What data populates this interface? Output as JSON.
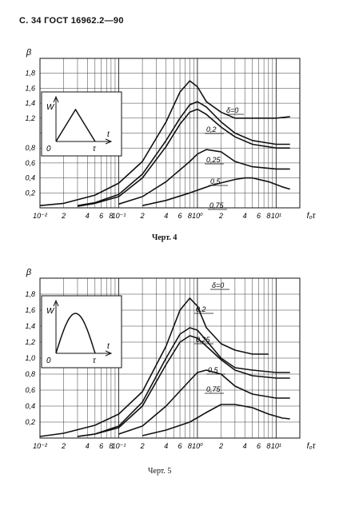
{
  "header": {
    "text": "С. 34  ГОСТ 16962.2—90"
  },
  "figures": [
    {
      "caption": "Черт. 4",
      "y_axis_label": "β",
      "x_axis_label": "f₀τ",
      "y_ticks": [
        "0,2",
        "0,4",
        "0,6",
        "0,8",
        "1,2",
        "1,4",
        "1,6",
        "1,8"
      ],
      "x_ticks": [
        "10⁻²",
        "2",
        "4",
        "6",
        "8",
        "10⁻¹",
        "2",
        "4",
        "6",
        "8",
        "10⁰",
        "2",
        "4",
        "6",
        "8",
        "10¹"
      ],
      "inset": {
        "y_label": "W",
        "x_label": "t",
        "origin": "0",
        "end": "τ",
        "shape": "triangle"
      },
      "curve_labels": [
        "δ=0",
        "0,2",
        "0,25",
        "0,5",
        "0,75"
      ]
    },
    {
      "caption": "Черт. 5",
      "y_axis_label": "β",
      "x_axis_label": "f₀τ",
      "y_ticks": [
        "0,2",
        "0,4",
        "0,6",
        "0,8",
        "1,0",
        "1,2",
        "1,4",
        "1,6",
        "1,8"
      ],
      "x_ticks": [
        "10⁻²",
        "2",
        "4",
        "6",
        "8",
        "10⁻¹",
        "2",
        "4",
        "6",
        "8",
        "10⁰",
        "2",
        "4",
        "6",
        "8",
        "10¹"
      ],
      "inset": {
        "y_label": "W",
        "x_label": "t",
        "origin": "0",
        "end": "τ",
        "shape": "half-sine"
      },
      "curve_labels": [
        "δ=0",
        "0,2",
        "0,25",
        "0,5",
        "0,75"
      ]
    }
  ],
  "chart_data": [
    {
      "type": "line",
      "xscale": "log",
      "xlim": [
        0.01,
        20
      ],
      "ylim": [
        0,
        2.0
      ],
      "series": [
        {
          "name": "δ=0",
          "x": [
            0.01,
            0.02,
            0.05,
            0.1,
            0.2,
            0.4,
            0.6,
            0.8,
            1.0,
            1.3,
            2,
            3,
            5,
            10,
            15
          ],
          "y": [
            0.03,
            0.06,
            0.17,
            0.33,
            0.62,
            1.15,
            1.55,
            1.7,
            1.62,
            1.42,
            1.28,
            1.2,
            1.2,
            1.2,
            1.22
          ]
        },
        {
          "name": "0,2",
          "x": [
            0.03,
            0.05,
            0.1,
            0.2,
            0.4,
            0.6,
            0.8,
            1.0,
            1.3,
            2,
            3,
            5,
            10,
            15
          ],
          "y": [
            0.03,
            0.07,
            0.18,
            0.45,
            0.9,
            1.2,
            1.38,
            1.42,
            1.35,
            1.15,
            1.0,
            0.9,
            0.85,
            0.85
          ]
        },
        {
          "name": "0,25",
          "x": [
            0.03,
            0.05,
            0.1,
            0.2,
            0.4,
            0.6,
            0.8,
            1.0,
            1.3,
            2,
            3,
            5,
            10,
            15
          ],
          "y": [
            0.02,
            0.06,
            0.15,
            0.4,
            0.82,
            1.12,
            1.28,
            1.32,
            1.25,
            1.08,
            0.95,
            0.85,
            0.8,
            0.8
          ]
        },
        {
          "name": "0,5",
          "x": [
            0.1,
            0.2,
            0.4,
            0.8,
            1.0,
            1.3,
            2,
            3,
            5,
            10,
            15
          ],
          "y": [
            0.05,
            0.15,
            0.35,
            0.62,
            0.72,
            0.78,
            0.75,
            0.62,
            0.55,
            0.52,
            0.52
          ]
        },
        {
          "name": "0,75",
          "x": [
            0.2,
            0.4,
            0.8,
            1.5,
            3,
            4,
            5,
            8,
            12,
            15
          ],
          "y": [
            0.03,
            0.1,
            0.2,
            0.3,
            0.38,
            0.4,
            0.4,
            0.35,
            0.28,
            0.25
          ]
        }
      ]
    },
    {
      "type": "line",
      "xscale": "log",
      "xlim": [
        0.01,
        20
      ],
      "ylim": [
        0,
        2.0
      ],
      "series": [
        {
          "name": "δ=0",
          "x": [
            0.01,
            0.02,
            0.05,
            0.1,
            0.2,
            0.4,
            0.6,
            0.8,
            1.0,
            1.3,
            2,
            3,
            5,
            8
          ],
          "y": [
            0.02,
            0.06,
            0.16,
            0.3,
            0.58,
            1.15,
            1.6,
            1.75,
            1.65,
            1.38,
            1.18,
            1.1,
            1.05,
            1.05
          ]
        },
        {
          "name": "0,2",
          "x": [
            0.03,
            0.05,
            0.1,
            0.2,
            0.4,
            0.6,
            0.8,
            1.0,
            1.3,
            2,
            3,
            5,
            10,
            15
          ],
          "y": [
            0.02,
            0.05,
            0.15,
            0.45,
            1.0,
            1.3,
            1.38,
            1.35,
            1.22,
            1.0,
            0.88,
            0.85,
            0.82,
            0.82
          ]
        },
        {
          "name": "0,25",
          "x": [
            0.03,
            0.05,
            0.1,
            0.2,
            0.4,
            0.6,
            0.8,
            1.0,
            1.3,
            2,
            3,
            5,
            10,
            15
          ],
          "y": [
            0.02,
            0.05,
            0.13,
            0.4,
            0.92,
            1.2,
            1.28,
            1.25,
            1.15,
            0.98,
            0.85,
            0.78,
            0.75,
            0.75
          ]
        },
        {
          "name": "0,5",
          "x": [
            0.1,
            0.2,
            0.4,
            0.8,
            1.0,
            1.3,
            2,
            3,
            5,
            10,
            15
          ],
          "y": [
            0.05,
            0.15,
            0.4,
            0.72,
            0.82,
            0.85,
            0.8,
            0.65,
            0.55,
            0.5,
            0.5
          ]
        },
        {
          "name": "0,75",
          "x": [
            0.2,
            0.4,
            0.8,
            1.3,
            2,
            3,
            5,
            8,
            12,
            15
          ],
          "y": [
            0.03,
            0.1,
            0.2,
            0.32,
            0.42,
            0.42,
            0.38,
            0.3,
            0.25,
            0.24
          ]
        }
      ]
    }
  ]
}
